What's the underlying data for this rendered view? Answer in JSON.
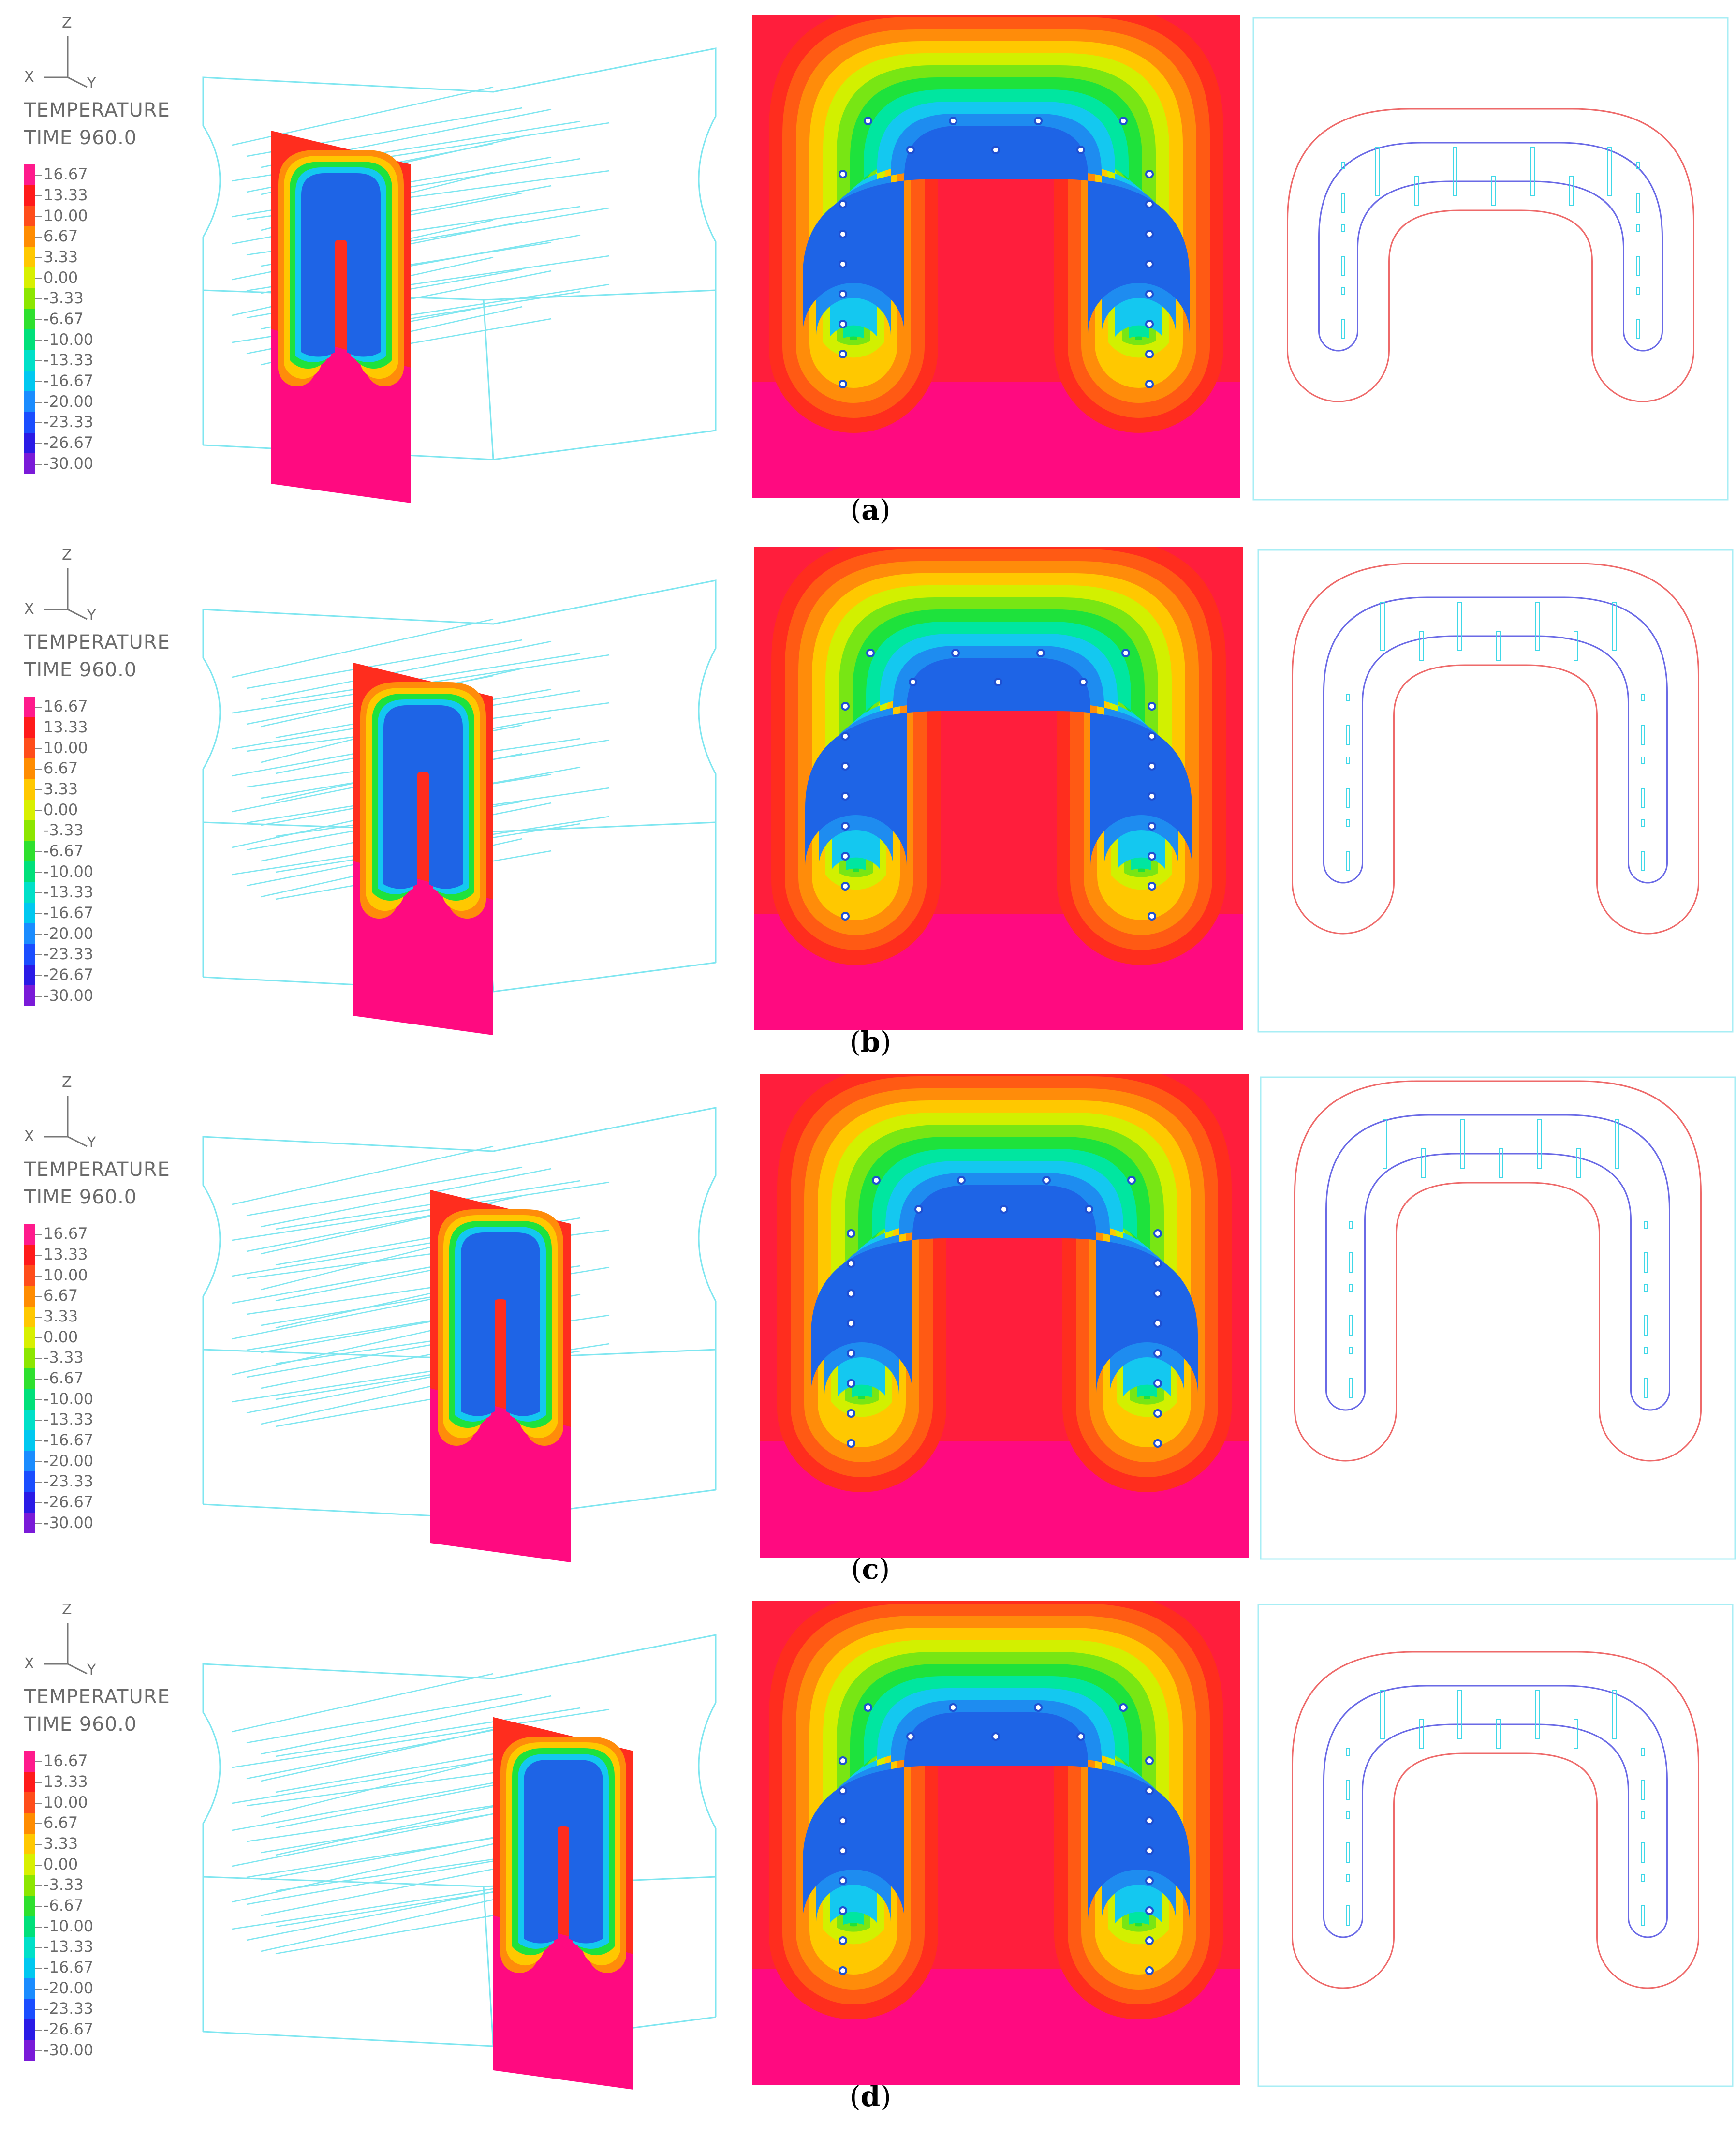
{
  "axis_labels": {
    "z": "Z",
    "x": "X",
    "y": "Y"
  },
  "plot_title": "TEMPERATURE",
  "time_label": "TIME 960.0",
  "legend_levels": [
    "16.67",
    "13.33",
    "10.00",
    "6.67",
    "3.33",
    "0.00",
    "-3.33",
    "-6.67",
    "-10.00",
    "-13.33",
    "-16.67",
    "-20.00",
    "-23.33",
    "-26.67",
    "-30.00"
  ],
  "legend_colors": [
    "#ff1a8c",
    "#ff1a1a",
    "#ff4d1a",
    "#ff8c00",
    "#ffc800",
    "#d8f000",
    "#8ce600",
    "#2ee02e",
    "#00e07a",
    "#00e0c8",
    "#00c8f0",
    "#1a8cff",
    "#1a4dff",
    "#2a1ae6",
    "#7a1ad8"
  ],
  "panels": [
    {
      "label": "a"
    },
    {
      "label": "b"
    },
    {
      "label": "c"
    },
    {
      "label": "d"
    }
  ]
}
